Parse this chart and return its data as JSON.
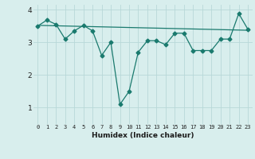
{
  "line1_x": [
    0,
    1,
    2,
    3,
    4,
    5,
    6,
    7,
    8,
    9,
    10,
    11,
    12,
    13,
    14,
    15,
    16,
    17,
    18,
    19,
    20,
    21,
    22,
    23
  ],
  "line1_y": [
    3.5,
    3.68,
    3.55,
    3.1,
    3.35,
    3.52,
    3.35,
    2.6,
    3.0,
    1.1,
    1.5,
    2.7,
    3.05,
    3.05,
    2.93,
    3.28,
    3.28,
    2.75,
    2.75,
    2.75,
    3.1,
    3.1,
    3.88,
    3.4
  ],
  "line2_x": [
    0,
    23
  ],
  "line2_y": [
    3.52,
    3.37
  ],
  "color": "#1a7a6e",
  "bg_color": "#d8eeed",
  "grid_color": "#b8d8d8",
  "xlabel": "Humidex (Indice chaleur)",
  "ylim": [
    0.5,
    4.15
  ],
  "xlim": [
    -0.5,
    23.5
  ],
  "yticks": [
    1,
    2,
    3,
    4
  ],
  "xticks": [
    0,
    1,
    2,
    3,
    4,
    5,
    6,
    7,
    8,
    9,
    10,
    11,
    12,
    13,
    14,
    15,
    16,
    17,
    18,
    19,
    20,
    21,
    22,
    23
  ],
  "marker": "D",
  "markersize": 2.5,
  "linewidth": 0.9
}
